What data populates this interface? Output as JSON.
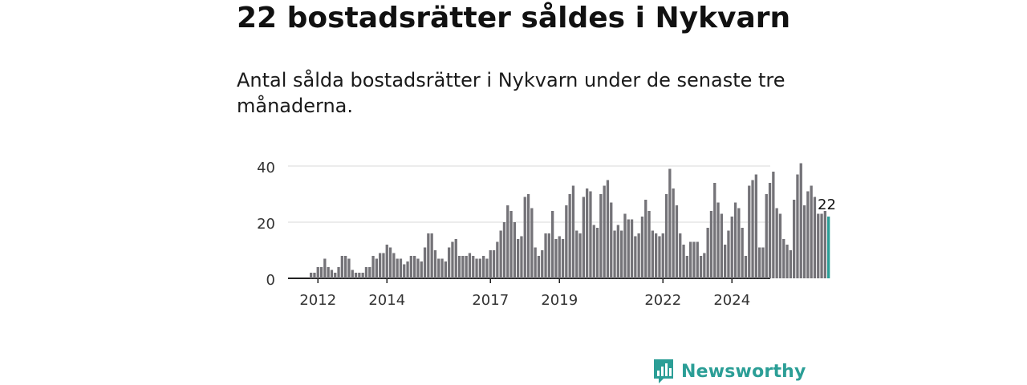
{
  "title": "22 bostadsrätter såldes i Nykvarn",
  "subtitle": "Antal sålda bostadsrätter i Nykvarn under de senaste tre månaderna.",
  "brand": {
    "name": "Newsworthy",
    "color": "#2b9e96"
  },
  "chart_data": {
    "type": "bar",
    "title": "22 bostadsrätter såldes i Nykvarn",
    "xlabel": "",
    "ylabel": "",
    "ylim": [
      0,
      40
    ],
    "y_ticks": [
      0,
      20,
      40
    ],
    "x_ticks": [
      {
        "label": "2012",
        "index": 2
      },
      {
        "label": "2014",
        "index": 22
      },
      {
        "label": "2017",
        "index": 52
      },
      {
        "label": "2019",
        "index": 72
      },
      {
        "label": "2022",
        "index": 102
      },
      {
        "label": "2024",
        "index": 122
      }
    ],
    "bar_color": "#747378",
    "highlight_color": "#2b9e96",
    "highlight_label": "22",
    "start": "2011-11",
    "end": "2024-11",
    "values": [
      2,
      2,
      4,
      4,
      7,
      4,
      3,
      2,
      4,
      8,
      8,
      7,
      3,
      2,
      2,
      2,
      4,
      4,
      8,
      7,
      9,
      9,
      12,
      11,
      9,
      7,
      7,
      5,
      6,
      8,
      8,
      7,
      6,
      11,
      16,
      16,
      10,
      7,
      7,
      6,
      11,
      13,
      14,
      8,
      8,
      8,
      9,
      8,
      7,
      7,
      8,
      7,
      10,
      10,
      13,
      17,
      20,
      26,
      24,
      20,
      14,
      15,
      29,
      30,
      25,
      11,
      8,
      10,
      16,
      16,
      24,
      14,
      15,
      14,
      26,
      30,
      33,
      17,
      16,
      29,
      32,
      31,
      19,
      18,
      30,
      33,
      35,
      27,
      17,
      19,
      17,
      23,
      21,
      21,
      15,
      16,
      22,
      28,
      24,
      17,
      16,
      15,
      16,
      30,
      39,
      32,
      26,
      16,
      12,
      8,
      13,
      13,
      13,
      8,
      9,
      18,
      24,
      34,
      27,
      23,
      12,
      17,
      22,
      27,
      25,
      18,
      8,
      33,
      35,
      37,
      11,
      11,
      30,
      34,
      38,
      25,
      23,
      14,
      12,
      10,
      28,
      37,
      41,
      26,
      31,
      33,
      29,
      23,
      23,
      24,
      22
    ]
  }
}
